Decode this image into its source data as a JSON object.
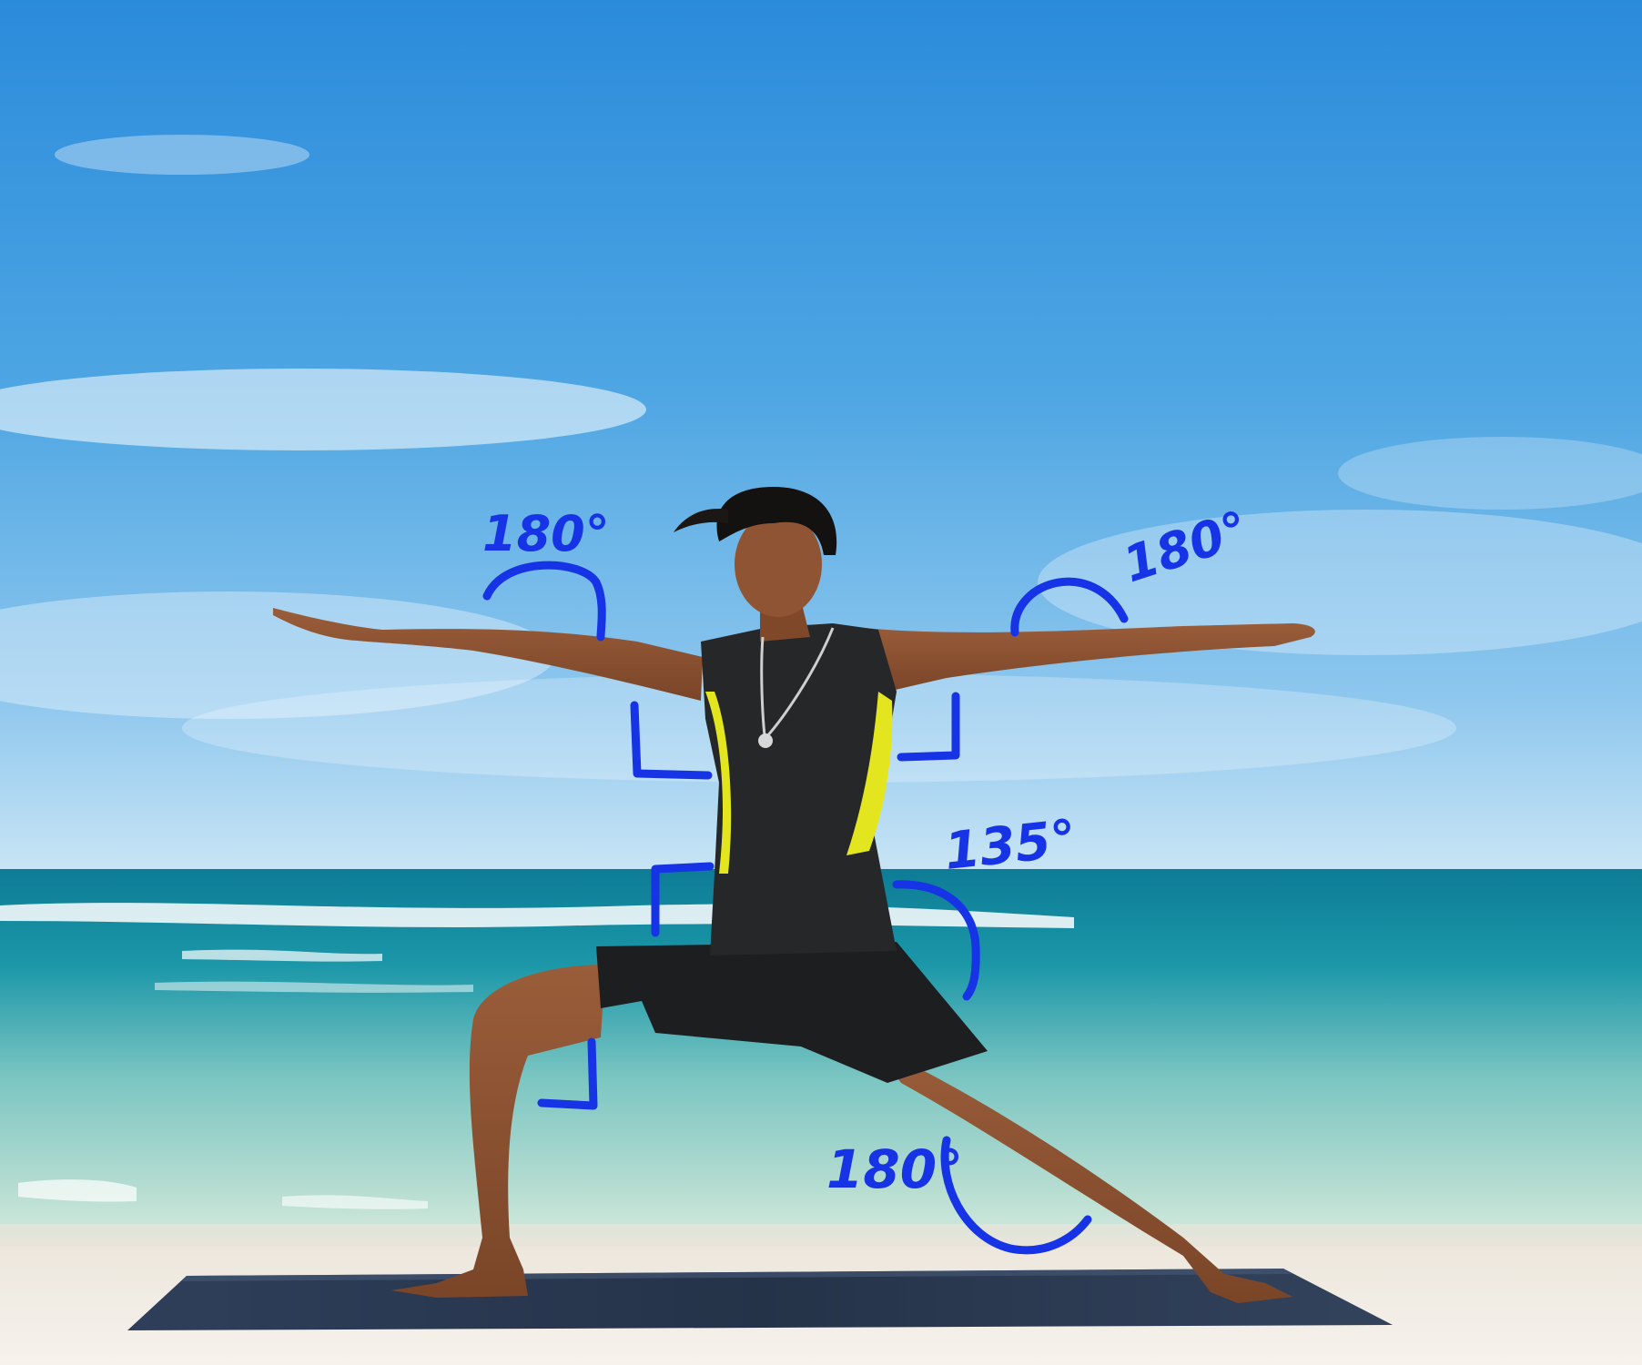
{
  "scene": {
    "description_colors": {
      "sky_top": "#2f8fdc",
      "sky_bottom": "#b9dcf1",
      "sea_deep": "#137e96",
      "sea_shallow": "#9ed3c5",
      "sand": "#f1ece4",
      "mat": "#2b3a52",
      "annotation": "#1634e6",
      "shirt": "#262729",
      "shirt_accent": "#e5e81c",
      "skin": "#8a5232"
    }
  },
  "annotations": [
    {
      "id": "left-arm-angle",
      "text": "180°"
    },
    {
      "id": "right-arm-angle",
      "text": "180°"
    },
    {
      "id": "hip-angle",
      "text": "135°"
    },
    {
      "id": "back-knee-angle",
      "text": "180°"
    }
  ]
}
